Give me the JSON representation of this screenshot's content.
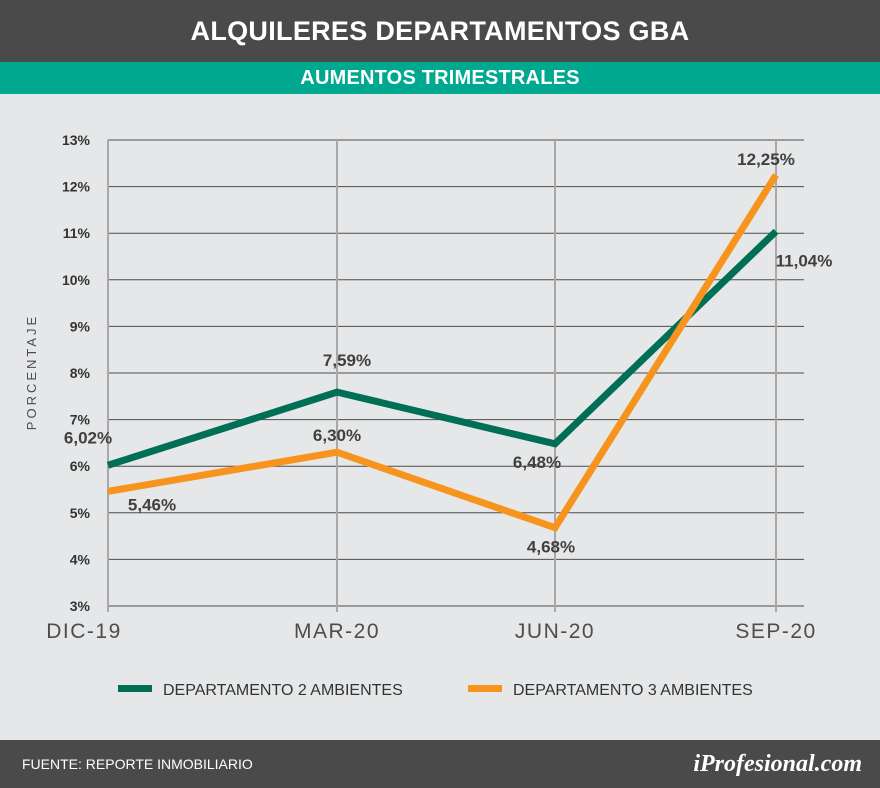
{
  "header": {
    "title": "ALQUILERES DEPARTAMENTOS GBA",
    "subtitle": "AUMENTOS TRIMESTRALES"
  },
  "footer": {
    "source": "FUENTE:   REPORTE INMOBILIARIO",
    "brand": "iProfesional.com"
  },
  "chart_data": {
    "type": "line",
    "title": "ALQUILERES DEPARTAMENTOS GBA",
    "subtitle": "AUMENTOS TRIMESTRALES",
    "xlabel": "",
    "ylabel": "PORCENTAJE",
    "categories": [
      "DIC-19",
      "MAR-20",
      "JUN-20",
      "SEP-20"
    ],
    "y_ticks": [
      "3%",
      "4%",
      "5%",
      "6%",
      "7%",
      "8%",
      "9%",
      "10%",
      "11%",
      "12%",
      "13%"
    ],
    "ylim": [
      3,
      13
    ],
    "grid": true,
    "legend_position": "bottom",
    "series": [
      {
        "name": "DEPARTAMENTO 2 AMBIENTES",
        "color": "#006f56",
        "values": [
          6.02,
          7.59,
          6.48,
          11.04
        ],
        "labels": [
          "6,02%",
          "7,59%",
          "6,48%",
          "11,04%"
        ]
      },
      {
        "name": "DEPARTAMENTO 3 AMBIENTES",
        "color": "#f7941d",
        "values": [
          5.46,
          6.3,
          4.68,
          12.25
        ],
        "labels": [
          "5,46%",
          "6,30%",
          "4,68%",
          "12,25%"
        ]
      }
    ]
  }
}
